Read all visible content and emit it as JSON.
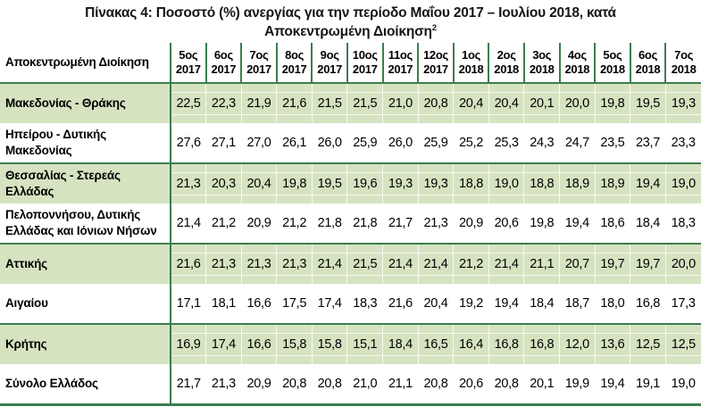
{
  "title": {
    "line1": "Πίνακας 4: Ποσοστό (%) ανεργίας για την περίοδο Μαΐου 2017 – Ιουλίου 2018, κατά",
    "line2": "Αποκεντρωμένη Διοίκηση",
    "superscript": "2"
  },
  "colors": {
    "row_shade": "#d6e3c1",
    "border_green": "#3b7e50",
    "title_text": "#151515"
  },
  "table": {
    "corner_header": "Αποκεντρωμένη Διοίκηση",
    "columns": [
      {
        "month": "5ος",
        "year": "2017"
      },
      {
        "month": "6ος",
        "year": "2017"
      },
      {
        "month": "7ος",
        "year": "2017"
      },
      {
        "month": "8ος",
        "year": "2017"
      },
      {
        "month": "9ος",
        "year": "2017"
      },
      {
        "month": "10ος",
        "year": "2017"
      },
      {
        "month": "11ος",
        "year": "2017"
      },
      {
        "month": "12ος",
        "year": "2017"
      },
      {
        "month": "1ος",
        "year": "2018"
      },
      {
        "month": "2ος",
        "year": "2018"
      },
      {
        "month": "3ος",
        "year": "2018"
      },
      {
        "month": "4ος",
        "year": "2018"
      },
      {
        "month": "5ος",
        "year": "2018"
      },
      {
        "month": "6ος",
        "year": "2018"
      },
      {
        "month": "7ος",
        "year": "2018"
      }
    ],
    "rows": [
      {
        "label": "Μακεδονίας - Θράκης",
        "shaded": true,
        "values": [
          "22,5",
          "22,3",
          "21,9",
          "21,6",
          "21,5",
          "21,5",
          "21,0",
          "20,8",
          "20,4",
          "20,4",
          "20,1",
          "20,0",
          "19,8",
          "19,5",
          "19,3"
        ]
      },
      {
        "label": "Ηπείρου - Δυτικής Μακεδονίας",
        "shaded": false,
        "values": [
          "27,6",
          "27,1",
          "27,0",
          "26,1",
          "26,0",
          "25,9",
          "26,0",
          "25,9",
          "25,2",
          "25,3",
          "24,3",
          "24,7",
          "23,5",
          "23,7",
          "23,3"
        ]
      },
      {
        "label": "Θεσσαλίας - Στερεάς Ελλάδας",
        "shaded": true,
        "values": [
          "21,3",
          "20,3",
          "20,4",
          "19,8",
          "19,5",
          "19,6",
          "19,3",
          "19,3",
          "18,8",
          "19,0",
          "18,8",
          "18,9",
          "18,9",
          "19,4",
          "19,0"
        ]
      },
      {
        "label": "Πελοποννήσου, Δυτικής Ελλάδας και Ιόνιων Νήσων",
        "shaded": false,
        "values": [
          "21,4",
          "21,2",
          "20,9",
          "21,2",
          "21,8",
          "21,8",
          "21,7",
          "21,3",
          "20,9",
          "20,6",
          "19,8",
          "19,4",
          "18,6",
          "18,4",
          "18,3"
        ]
      },
      {
        "label": "Αττικής",
        "shaded": true,
        "values": [
          "21,6",
          "21,3",
          "21,3",
          "21,3",
          "21,4",
          "21,5",
          "21,4",
          "21,4",
          "21,2",
          "21,4",
          "21,1",
          "20,7",
          "19,7",
          "19,7",
          "20,0"
        ]
      },
      {
        "label": "Αιγαίου",
        "shaded": false,
        "values": [
          "17,1",
          "18,1",
          "16,6",
          "17,5",
          "17,4",
          "18,3",
          "21,6",
          "20,4",
          "19,2",
          "19,4",
          "18,4",
          "18,7",
          "18,0",
          "16,8",
          "17,3"
        ]
      },
      {
        "label": "Κρήτης",
        "shaded": true,
        "values": [
          "16,9",
          "17,4",
          "16,6",
          "15,8",
          "15,8",
          "15,1",
          "18,4",
          "16,5",
          "16,4",
          "16,8",
          "16,8",
          "12,0",
          "13,6",
          "12,5",
          "12,5"
        ]
      },
      {
        "label": "Σύνολο Ελλάδος",
        "shaded": false,
        "values": [
          "21,7",
          "21,3",
          "20,9",
          "20,8",
          "20,8",
          "21,0",
          "21,1",
          "20,8",
          "20,6",
          "20,8",
          "20,1",
          "19,9",
          "19,4",
          "19,1",
          "19,0"
        ]
      }
    ]
  }
}
